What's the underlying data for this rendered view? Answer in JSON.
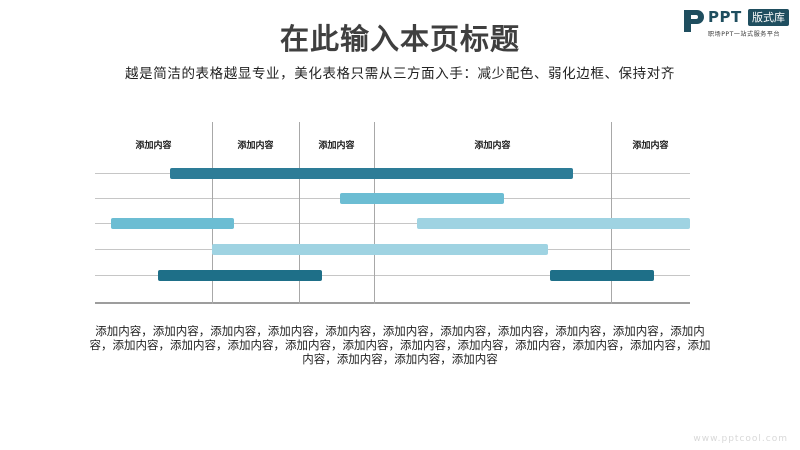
{
  "title": "在此输入本页标题",
  "subtitle": "越是简洁的表格越显专业，美化表格只需从三方面入手：减少配色、弱化边框、保持对齐",
  "logo": {
    "brand": "PPT",
    "tag": "版式库",
    "tagline": "职场PPT一站式服务平台"
  },
  "colors": {
    "dark_teal": "#1e6f88",
    "mid_teal": "#2f86a4",
    "sky_blue": "#6cbdd3",
    "light_blue": "#9fd3e2",
    "brand": "#1f4e5f"
  },
  "table": {
    "columns": [
      {
        "label": "添加内容"
      },
      {
        "label": "添加内容"
      },
      {
        "label": "添加内容"
      },
      {
        "label": "添加内容"
      },
      {
        "label": "添加内容"
      }
    ]
  },
  "description": "添加内容，添加内容，添加内容，添加内容，添加内容，添加内容，添加内容，添加内容，添加内容，添加内容，添加内容，添加内容，添加内容，添加内容，添加内容，添加内容，添加内容，添加内容，添加内容，添加内容，添加内容，添加内容，添加内容，添加内容，添加内容",
  "watermark": "www.pptcool.com"
}
